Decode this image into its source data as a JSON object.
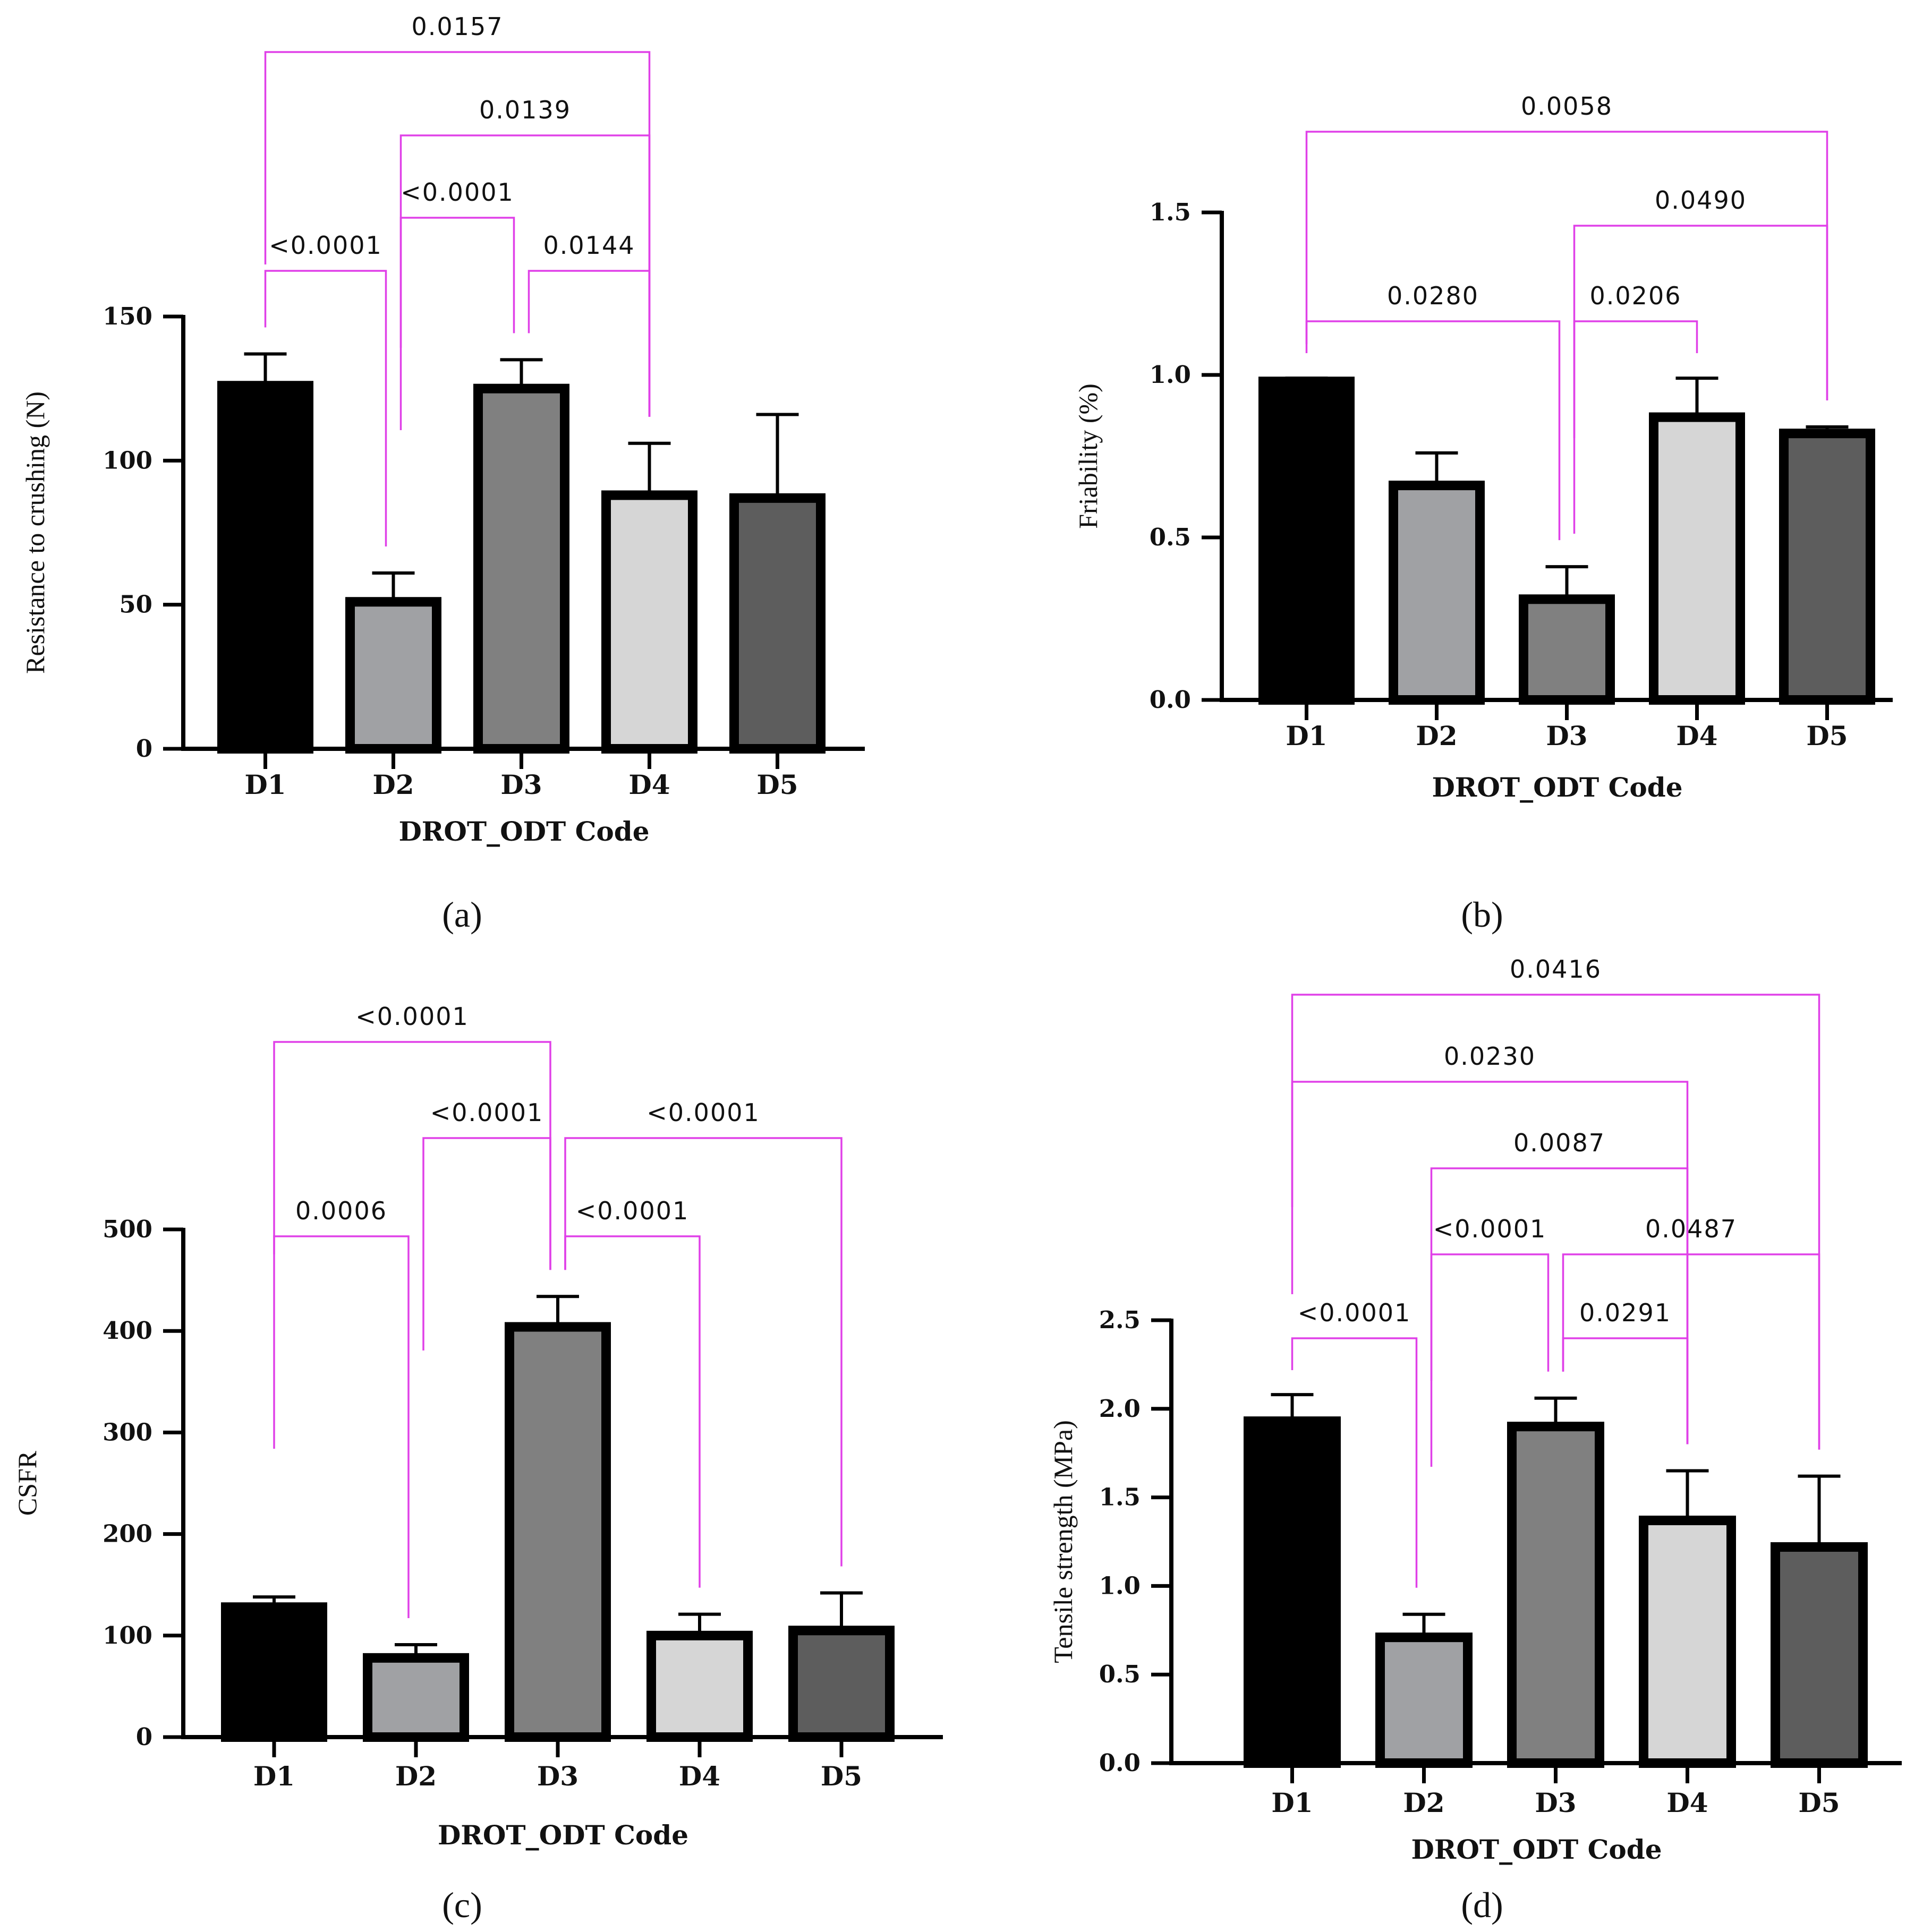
{
  "colors": {
    "bar_fills": [
      "#000000",
      "#a0a1a4",
      "#808080",
      "#d6d6d6",
      "#5d5d5d"
    ],
    "bar_stroke": "#000000",
    "bracket": "#e040e8",
    "axis": "#000000"
  },
  "chart_data": [
    {
      "panel": "(a)",
      "type": "bar",
      "xlabel": "DROT_ODT Code",
      "ylabel": "Resistance to crushing (N)",
      "ylim": [
        0,
        150
      ],
      "yticks": [
        0,
        50,
        100,
        150
      ],
      "ytick_labels": [
        "0",
        "50",
        "100",
        "150"
      ],
      "categories": [
        "D1",
        "D2",
        "D3",
        "D4",
        "D5"
      ],
      "values": [
        126,
        51,
        125,
        88,
        87
      ],
      "errors": [
        11,
        10,
        10,
        18,
        29
      ],
      "significance": [
        {
          "from": 0,
          "to": 1,
          "label": "<0.0001"
        },
        {
          "from": 1,
          "to": 2,
          "label": "<0.0001"
        },
        {
          "from": 2,
          "to": 3,
          "label": "0.0144"
        },
        {
          "from": 1,
          "to": 3,
          "label": "0.0139"
        },
        {
          "from": 0,
          "to": 3,
          "label": "0.0157"
        }
      ]
    },
    {
      "panel": "(b)",
      "type": "bar",
      "xlabel": "DROT_ODT Code",
      "ylabel": "Friability (%)",
      "ylim": [
        0,
        1.5
      ],
      "yticks": [
        0,
        0.5,
        1.0,
        1.5
      ],
      "ytick_labels": [
        "0.0",
        "0.5",
        "1.0",
        "1.5"
      ],
      "categories": [
        "D1",
        "D2",
        "D3",
        "D4",
        "D5"
      ],
      "values": [
        0.98,
        0.66,
        0.31,
        0.87,
        0.82
      ],
      "errors": [
        0.01,
        0.1,
        0.1,
        0.12,
        0.02
      ],
      "significance": [
        {
          "from": 0,
          "to": 2,
          "label": "0.0280"
        },
        {
          "from": 2,
          "to": 3,
          "label": "0.0206"
        },
        {
          "from": 2,
          "to": 4,
          "label": "0.0490"
        },
        {
          "from": 0,
          "to": 4,
          "label": "0.0058"
        }
      ]
    },
    {
      "panel": "(c)",
      "type": "bar",
      "xlabel": "DROT_ODT Code",
      "ylabel": "CSFR",
      "ylim": [
        0,
        500
      ],
      "yticks": [
        0,
        100,
        200,
        300,
        400,
        500
      ],
      "ytick_labels": [
        "0",
        "100",
        "200",
        "300",
        "400",
        "500"
      ],
      "categories": [
        "D1",
        "D2",
        "D3",
        "D4",
        "D5"
      ],
      "values": [
        128,
        78,
        404,
        100,
        105
      ],
      "errors": [
        10,
        13,
        30,
        21,
        37
      ],
      "significance": [
        {
          "from": 0,
          "to": 1,
          "label": "0.0006"
        },
        {
          "from": 2,
          "to": 3,
          "label": "<0.0001"
        },
        {
          "from": 1,
          "to": 2,
          "label": "<0.0001"
        },
        {
          "from": 2,
          "to": 4,
          "label": "<0.0001"
        },
        {
          "from": 0,
          "to": 2,
          "label": "<0.0001"
        }
      ]
    },
    {
      "panel": "(d)",
      "type": "bar",
      "xlabel": "DROT_ODT Code",
      "ylabel": "Tensile strength (MPa)",
      "ylim": [
        0,
        2.5
      ],
      "yticks": [
        0,
        0.5,
        1.0,
        1.5,
        2.0,
        2.5
      ],
      "ytick_labels": [
        "0.0",
        "0.5",
        "1.0",
        "1.5",
        "2.0",
        "2.5"
      ],
      "categories": [
        "D1",
        "D2",
        "D3",
        "D4",
        "D5"
      ],
      "values": [
        1.93,
        0.71,
        1.9,
        1.37,
        1.22
      ],
      "errors": [
        0.15,
        0.13,
        0.16,
        0.28,
        0.4
      ],
      "significance": [
        {
          "from": 0,
          "to": 1,
          "label": "<0.0001"
        },
        {
          "from": 2,
          "to": 3,
          "label": "0.0291"
        },
        {
          "from": 1,
          "to": 2,
          "label": "<0.0001"
        },
        {
          "from": 2,
          "to": 4,
          "label": "0.0487"
        },
        {
          "from": 1,
          "to": 3,
          "label": "0.0087"
        },
        {
          "from": 0,
          "to": 3,
          "label": "0.0230"
        },
        {
          "from": 0,
          "to": 4,
          "label": "0.0416"
        }
      ]
    }
  ]
}
